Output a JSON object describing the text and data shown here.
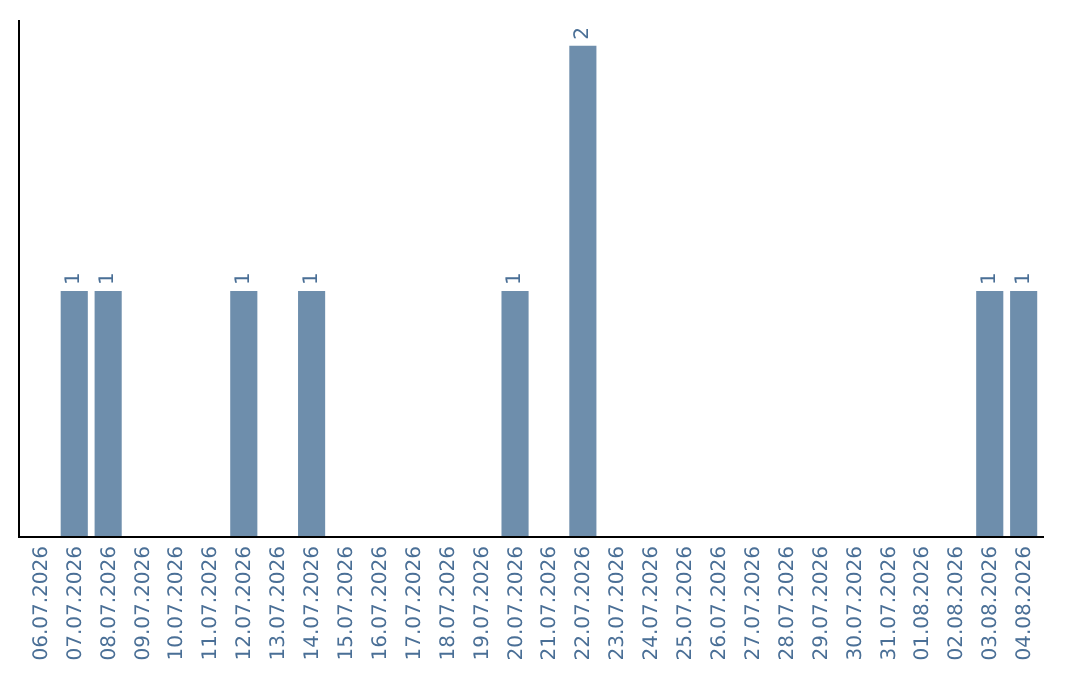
{
  "chart_data": {
    "type": "bar",
    "categories": [
      "06.07.2026",
      "07.07.2026",
      "08.07.2026",
      "09.07.2026",
      "10.07.2026",
      "11.07.2026",
      "12.07.2026",
      "13.07.2026",
      "14.07.2026",
      "15.07.2026",
      "16.07.2026",
      "17.07.2026",
      "18.07.2026",
      "19.07.2026",
      "20.07.2026",
      "21.07.2026",
      "22.07.2026",
      "23.07.2026",
      "24.07.2026",
      "25.07.2026",
      "26.07.2026",
      "27.07.2026",
      "28.07.2026",
      "29.07.2026",
      "30.07.2026",
      "31.07.2026",
      "01.08.2026",
      "02.08.2026",
      "03.08.2026",
      "04.08.2026"
    ],
    "values": [
      0,
      1,
      1,
      0,
      0,
      0,
      1,
      0,
      1,
      0,
      0,
      0,
      0,
      0,
      1,
      0,
      2,
      0,
      0,
      0,
      0,
      0,
      0,
      0,
      0,
      0,
      0,
      0,
      1,
      1
    ],
    "value_labels": [
      null,
      "1",
      "1",
      null,
      null,
      null,
      "1",
      null,
      "1",
      null,
      null,
      null,
      null,
      null,
      "1",
      null,
      "2",
      null,
      null,
      null,
      null,
      null,
      null,
      null,
      null,
      null,
      null,
      null,
      "1",
      "1"
    ],
    "color": "#6e8eac",
    "tick_labels": "x",
    "legend": false
  }
}
